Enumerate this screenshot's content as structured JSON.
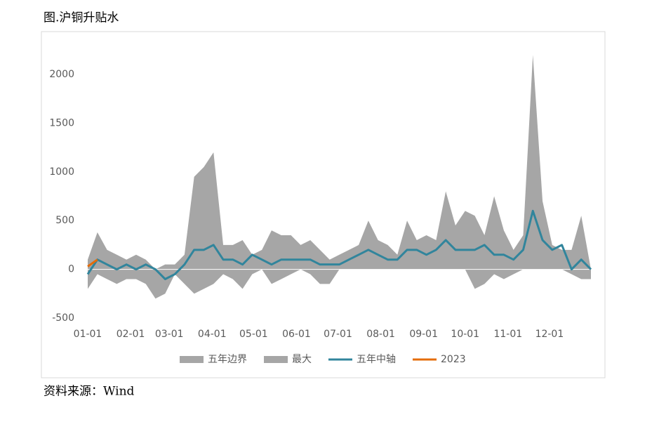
{
  "chart_data": {
    "type": "area-band-line",
    "title": "图.沪铜升贴水",
    "source": "资料来源：Wind",
    "x": [
      1,
      8,
      15,
      22,
      29,
      36,
      43,
      50,
      57,
      64,
      71,
      78,
      85,
      92,
      99,
      106,
      113,
      120,
      127,
      134,
      141,
      148,
      155,
      162,
      169,
      176,
      183,
      190,
      197,
      204,
      211,
      218,
      225,
      232,
      239,
      246,
      253,
      260,
      267,
      274,
      281,
      288,
      295,
      302,
      309,
      316,
      323,
      330,
      337,
      344,
      351,
      358,
      365
    ],
    "xlim": [
      1,
      365
    ],
    "xticks": [
      {
        "value": 1,
        "label": "01-01"
      },
      {
        "value": 32,
        "label": "02-01"
      },
      {
        "value": 60,
        "label": "03-01"
      },
      {
        "value": 91,
        "label": "04-01"
      },
      {
        "value": 121,
        "label": "05-01"
      },
      {
        "value": 152,
        "label": "06-01"
      },
      {
        "value": 182,
        "label": "07-01"
      },
      {
        "value": 213,
        "label": "08-01"
      },
      {
        "value": 244,
        "label": "09-01"
      },
      {
        "value": 274,
        "label": "10-01"
      },
      {
        "value": 305,
        "label": "11-01"
      },
      {
        "value": 335,
        "label": "12-01"
      }
    ],
    "ylim": [
      -500,
      2000
    ],
    "yticks": [
      -500,
      0,
      500,
      1000,
      1500,
      2000
    ],
    "series": [
      {
        "name": "五年边界",
        "kind": "area",
        "color": "#a6a6a6",
        "values": [
          -200,
          -50,
          -100,
          -150,
          -100,
          -100,
          -150,
          -300,
          -250,
          -50,
          -150,
          -250,
          -200,
          -150,
          -50,
          -100,
          -200,
          -50,
          0,
          -150,
          -100,
          -50,
          0,
          -50,
          -150,
          -150,
          0,
          0,
          0,
          0,
          50,
          50,
          0,
          0,
          0,
          0,
          0,
          0,
          0,
          0,
          -200,
          -150,
          -50,
          -100,
          -50,
          0,
          0,
          0,
          0,
          0,
          -50,
          -100,
          -100
        ]
      },
      {
        "name": "最大",
        "kind": "area",
        "color": "#a6a6a6",
        "values": [
          100,
          380,
          200,
          150,
          100,
          150,
          100,
          0,
          50,
          50,
          150,
          950,
          1050,
          1200,
          250,
          250,
          300,
          150,
          200,
          400,
          350,
          350,
          250,
          300,
          200,
          100,
          150,
          200,
          250,
          500,
          300,
          250,
          150,
          500,
          300,
          350,
          300,
          800,
          450,
          600,
          550,
          350,
          750,
          400,
          200,
          350,
          2200,
          700,
          250,
          200,
          200,
          550,
          0
        ]
      },
      {
        "name": "五年中轴",
        "kind": "line",
        "color": "#31859c",
        "values": [
          -50,
          100,
          50,
          0,
          50,
          0,
          50,
          0,
          -100,
          -50,
          50,
          200,
          200,
          250,
          100,
          100,
          50,
          150,
          100,
          50,
          100,
          100,
          100,
          100,
          50,
          50,
          50,
          100,
          150,
          200,
          150,
          100,
          100,
          200,
          200,
          150,
          200,
          300,
          200,
          200,
          200,
          250,
          150,
          150,
          100,
          200,
          600,
          300,
          200,
          250,
          0,
          100,
          0
        ]
      },
      {
        "name": "2023",
        "kind": "line",
        "color": "#e46c0a",
        "values": [
          30,
          100,
          null,
          null,
          null,
          null,
          null,
          null,
          null,
          null,
          null,
          null,
          null,
          null,
          null,
          null,
          null,
          null,
          null,
          null,
          null,
          null,
          null,
          null,
          null,
          null,
          null,
          null,
          null,
          null,
          null,
          null,
          null,
          null,
          null,
          null,
          null,
          null,
          null,
          null,
          null,
          null,
          null,
          null,
          null,
          null,
          null,
          null,
          null,
          null,
          null,
          null,
          null
        ]
      }
    ],
    "legend": "bottom"
  }
}
